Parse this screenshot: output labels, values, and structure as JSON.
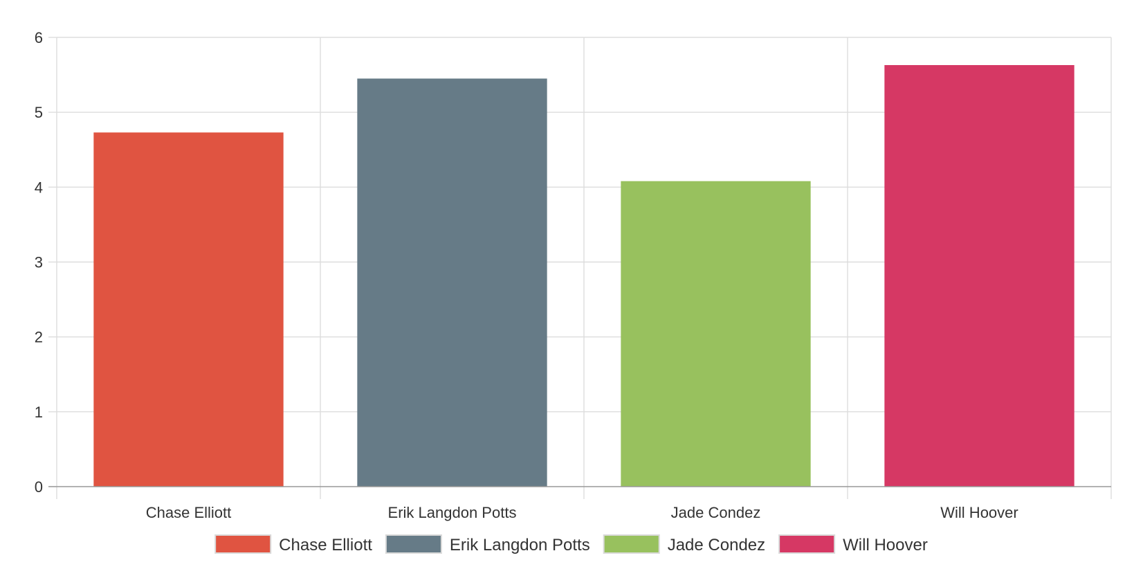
{
  "chart_data": {
    "type": "bar",
    "title": "",
    "xlabel": "",
    "ylabel": "",
    "categories": [
      "Chase Elliott",
      "Erik Langdon Potts",
      "Jade Condez",
      "Will Hoover"
    ],
    "values": [
      4.73,
      5.45,
      4.08,
      5.63
    ],
    "ylim": [
      0,
      6
    ],
    "yticks": [
      "0",
      "1",
      "2",
      "3",
      "4",
      "5",
      "6"
    ],
    "colors": [
      "#e05441",
      "#667b87",
      "#98c15e",
      "#d63864"
    ],
    "legend": {
      "position": "bottom",
      "entries": [
        "Chase Elliott",
        "Erik Langdon Potts",
        "Jade Condez",
        "Will Hoover"
      ]
    },
    "grid": true
  }
}
